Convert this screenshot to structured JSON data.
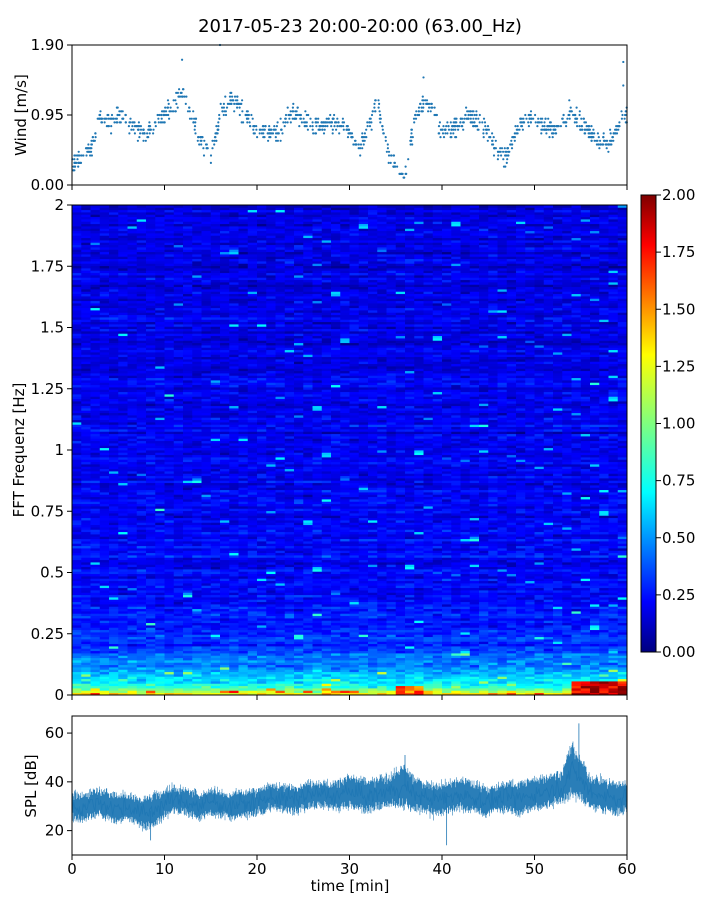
{
  "figure": {
    "title": "2017-05-23 20:00-20:00 (63.00_Hz)"
  },
  "colors": {
    "wind_marker": "#1f77b4",
    "spl_line": "#1f77b4",
    "axes": "#000000",
    "colormap": "jet"
  },
  "chart_data": [
    {
      "type": "scatter",
      "panel": "wind",
      "ylabel": "Wind [m/s]",
      "xlim": [
        0,
        60
      ],
      "ylim": [
        0.0,
        1.9
      ],
      "yticks": [
        "0.00",
        "0.95",
        "1.90"
      ],
      "ytick_values": [
        0.0,
        0.95,
        1.9
      ],
      "xticks_visible": false,
      "series_note": "dense point cloud, values mostly 0.5-1.3 m/s",
      "x": [
        0,
        1,
        2,
        3,
        4,
        5,
        6,
        7,
        8,
        9,
        10,
        11,
        12,
        13,
        14,
        15,
        16,
        17,
        18,
        19,
        20,
        21,
        22,
        23,
        24,
        25,
        26,
        27,
        28,
        29,
        30,
        31,
        32,
        33,
        34,
        35,
        36,
        37,
        38,
        39,
        40,
        41,
        42,
        43,
        44,
        45,
        46,
        47,
        48,
        49,
        50,
        51,
        52,
        53,
        54,
        55,
        56,
        57,
        58,
        59,
        60
      ],
      "y": [
        0.3,
        0.35,
        0.5,
        0.9,
        0.85,
        0.95,
        0.85,
        0.8,
        0.7,
        0.85,
        0.95,
        1.1,
        1.25,
        0.9,
        0.6,
        0.4,
        0.95,
        1.2,
        1.1,
        0.9,
        0.75,
        0.7,
        0.7,
        0.85,
        1.0,
        0.9,
        0.8,
        0.8,
        0.85,
        0.8,
        0.7,
        0.5,
        0.8,
        1.15,
        0.5,
        0.2,
        0.15,
        0.9,
        1.1,
        1.0,
        0.7,
        0.75,
        0.85,
        0.9,
        0.85,
        0.7,
        0.45,
        0.4,
        0.75,
        0.9,
        0.95,
        0.8,
        0.75,
        0.85,
        1.0,
        0.85,
        0.7,
        0.6,
        0.55,
        0.8,
        1.0
      ]
    },
    {
      "type": "heatmap",
      "panel": "spectrogram",
      "ylabel": "FFT Frequenz [Hz]",
      "xlim": [
        0,
        60
      ],
      "ylim": [
        0,
        2
      ],
      "yticks": [
        "0",
        "0.25",
        "0.5",
        "0.75",
        "1",
        "1.25",
        "1.5",
        "1.75",
        "2"
      ],
      "ytick_values": [
        0,
        0.25,
        0.5,
        0.75,
        1,
        1.25,
        1.5,
        1.75,
        2
      ],
      "xticks_visible": false,
      "colorbar": {
        "range": [
          0.0,
          2.0
        ],
        "ticks": [
          "0.00",
          "0.25",
          "0.50",
          "0.75",
          "1.00",
          "1.25",
          "1.50",
          "1.75",
          "2.00"
        ],
        "tick_values": [
          0,
          0.25,
          0.5,
          0.75,
          1.0,
          1.25,
          1.5,
          1.75,
          2.0
        ],
        "colormap": "jet"
      },
      "profile_by_frequency": {
        "freq": [
          0.0,
          0.02,
          0.05,
          0.1,
          0.15,
          0.25,
          0.5,
          1.0,
          2.0
        ],
        "typical_value": [
          1.3,
          1.0,
          0.75,
          0.55,
          0.45,
          0.32,
          0.25,
          0.22,
          0.2
        ]
      },
      "hotspots": [
        {
          "time": [
            54,
            60
          ],
          "freq": [
            0,
            0.06
          ],
          "value": 2.0
        },
        {
          "time": [
            35,
            38
          ],
          "freq": [
            0,
            0.04
          ],
          "value": 1.7
        }
      ]
    },
    {
      "type": "line",
      "panel": "spl",
      "ylabel": "SPL [dB]",
      "xlabel": "time [min]",
      "xlim": [
        0,
        60
      ],
      "ylim": [
        10,
        67
      ],
      "yticks": [
        "20",
        "40",
        "60"
      ],
      "ytick_values": [
        20,
        40,
        60
      ],
      "xticks": [
        "0",
        "10",
        "20",
        "30",
        "40",
        "50",
        "60"
      ],
      "xtick_values": [
        0,
        10,
        20,
        30,
        40,
        50,
        60
      ],
      "x": [
        0,
        1,
        2,
        3,
        4,
        5,
        6,
        7,
        8,
        9,
        10,
        11,
        12,
        13,
        14,
        15,
        16,
        17,
        18,
        19,
        20,
        21,
        22,
        23,
        24,
        25,
        26,
        27,
        28,
        29,
        30,
        31,
        32,
        33,
        34,
        35,
        36,
        37,
        38,
        39,
        40,
        41,
        42,
        43,
        44,
        45,
        46,
        47,
        48,
        49,
        50,
        51,
        52,
        53,
        54,
        55,
        56,
        57,
        58,
        59,
        60
      ],
      "y": [
        30,
        29,
        31,
        32,
        30,
        29,
        30,
        28,
        27,
        29,
        31,
        33,
        32,
        31,
        30,
        32,
        31,
        30,
        31,
        31,
        32,
        33,
        34,
        33,
        33,
        34,
        35,
        35,
        34,
        35,
        36,
        35,
        34,
        35,
        36,
        37,
        38,
        35,
        34,
        33,
        33,
        34,
        35,
        34,
        33,
        32,
        33,
        34,
        33,
        34,
        35,
        36,
        37,
        38,
        45,
        41,
        36,
        35,
        34,
        33,
        34
      ],
      "band_half_width": [
        5,
        5,
        5,
        5,
        5,
        6,
        5,
        5,
        6,
        6,
        5,
        5,
        5,
        5,
        5,
        5,
        5,
        5,
        5,
        5,
        5,
        5,
        5,
        5,
        5,
        5,
        5,
        5,
        5,
        6,
        6,
        6,
        6,
        6,
        6,
        7,
        8,
        6,
        6,
        6,
        6,
        6,
        6,
        6,
        6,
        5,
        5,
        6,
        6,
        6,
        6,
        6,
        6,
        6,
        10,
        8,
        6,
        6,
        6,
        6,
        6
      ],
      "peaks": [
        {
          "x": 36.0,
          "y": 51
        },
        {
          "x": 54.8,
          "y": 64
        },
        {
          "x": 40.5,
          "y": 14
        },
        {
          "x": 8.5,
          "y": 16
        }
      ]
    }
  ]
}
